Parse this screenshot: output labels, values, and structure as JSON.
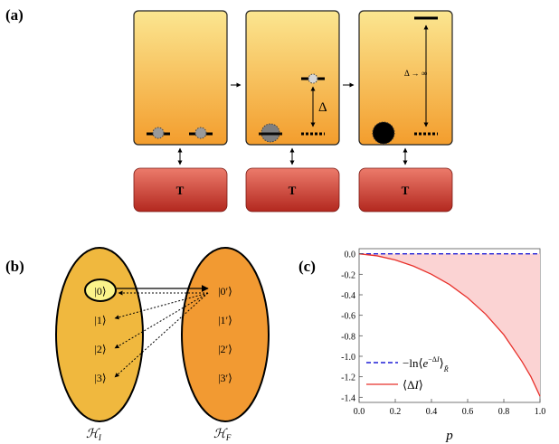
{
  "panel_a": {
    "label": "(a)",
    "delta_label": "Δ",
    "delta_inf_label": "Δ → ∞",
    "reservoir_label": "T",
    "colors": {
      "box_top": "#fbe690",
      "box_bottom": "#f39d2d",
      "reservoir_top": "#ec7b6b",
      "reservoir_bottom": "#b3281f"
    }
  },
  "panel_b": {
    "label": "(b)",
    "left_states": [
      "|0⟩",
      "|1⟩",
      "|2⟩",
      "|3⟩"
    ],
    "right_states": [
      "|0′⟩",
      "|1′⟩",
      "|2′⟩",
      "|3′⟩"
    ],
    "left_space": "ℋ",
    "left_sub": "I",
    "right_space": "ℋ",
    "right_sub": "F",
    "colors": {
      "left": "#f0b83e",
      "right": "#f29a32",
      "highlight": "#fbf48a"
    }
  },
  "panel_c": {
    "label": "(c)",
    "chart_data": {
      "type": "line",
      "xlabel": "p",
      "ylabel": "",
      "xlim": [
        0.0,
        1.0
      ],
      "ylim": [
        -1.45,
        0.05
      ],
      "xticks": [
        "0.0",
        "0.2",
        "0.4",
        "0.6",
        "0.8",
        "1.0"
      ],
      "yticks": [
        "0.0",
        "-0.2",
        "-0.4",
        "-0.6",
        "-0.8",
        "-1.0",
        "-1.2",
        "-1.4"
      ],
      "legend_position": "bottom-left",
      "fill_between": true,
      "series": [
        {
          "name": "−ln⟨e^{−ΔI}⟩_R̃",
          "style": "dashed",
          "color": "#1f1fd6",
          "x": [
            0.0,
            0.2,
            0.4,
            0.6,
            0.8,
            1.0
          ],
          "y": [
            0.0,
            0.0,
            0.0,
            0.0,
            0.0,
            0.0
          ]
        },
        {
          "name": "⟨ΔI⟩",
          "style": "solid",
          "color": "#e8312b",
          "x": [
            0.0,
            0.1,
            0.2,
            0.3,
            0.4,
            0.5,
            0.6,
            0.7,
            0.8,
            0.9,
            0.95,
            1.0
          ],
          "y": [
            0.0,
            -0.02,
            -0.06,
            -0.12,
            -0.2,
            -0.3,
            -0.43,
            -0.59,
            -0.79,
            -1.05,
            -1.2,
            -1.39
          ]
        }
      ],
      "fill_color": "#fbd3d3"
    }
  }
}
